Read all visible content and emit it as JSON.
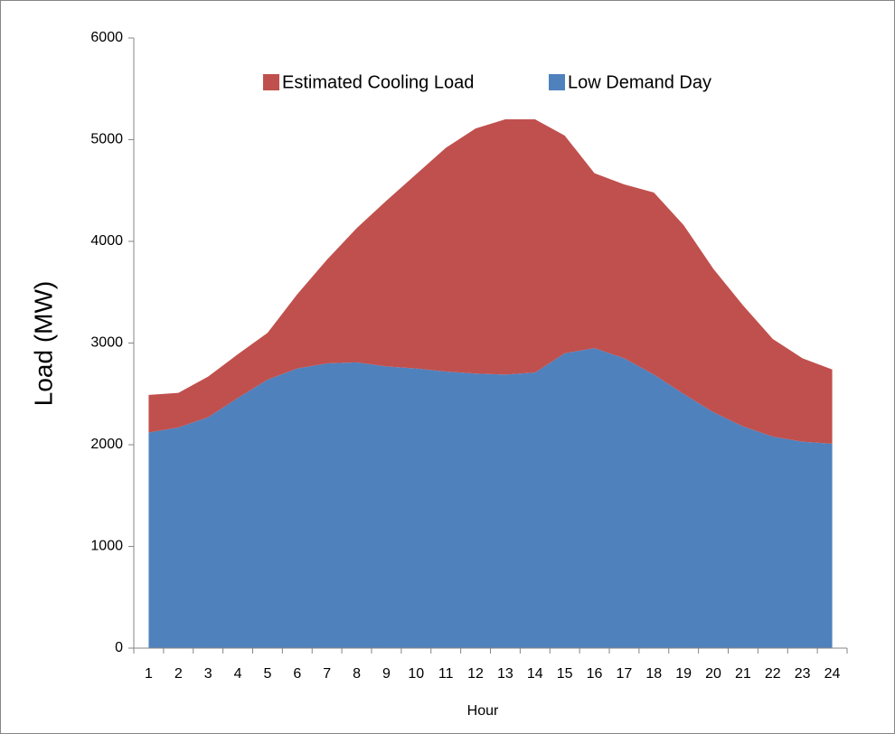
{
  "chart_data": {
    "type": "stacked-area",
    "y_label": "Load (MW)",
    "x_label": "Hour",
    "categories": [
      1,
      2,
      3,
      4,
      5,
      6,
      7,
      8,
      9,
      10,
      11,
      12,
      13,
      14,
      15,
      16,
      17,
      18,
      19,
      20,
      21,
      22,
      23,
      24
    ],
    "series": [
      {
        "name": "Low Demand Day",
        "color": "#4f81bd",
        "values": [
          2120,
          2170,
          2270,
          2460,
          2640,
          2750,
          2800,
          2810,
          2770,
          2750,
          2720,
          2700,
          2690,
          2710,
          2900,
          2950,
          2850,
          2690,
          2500,
          2320,
          2180,
          2080,
          2030,
          2010
        ]
      },
      {
        "name": "Estimated Cooling Load",
        "color": "#c0504d",
        "values": [
          370,
          340,
          400,
          430,
          460,
          730,
          1020,
          1320,
          1630,
          1910,
          2200,
          2410,
          2510,
          2490,
          2140,
          1720,
          1710,
          1790,
          1660,
          1410,
          1190,
          960,
          820,
          730
        ]
      }
    ],
    "ylim": [
      0,
      6000
    ],
    "yticks": [
      0,
      1000,
      2000,
      3000,
      4000,
      5000,
      6000
    ],
    "grid": false
  }
}
